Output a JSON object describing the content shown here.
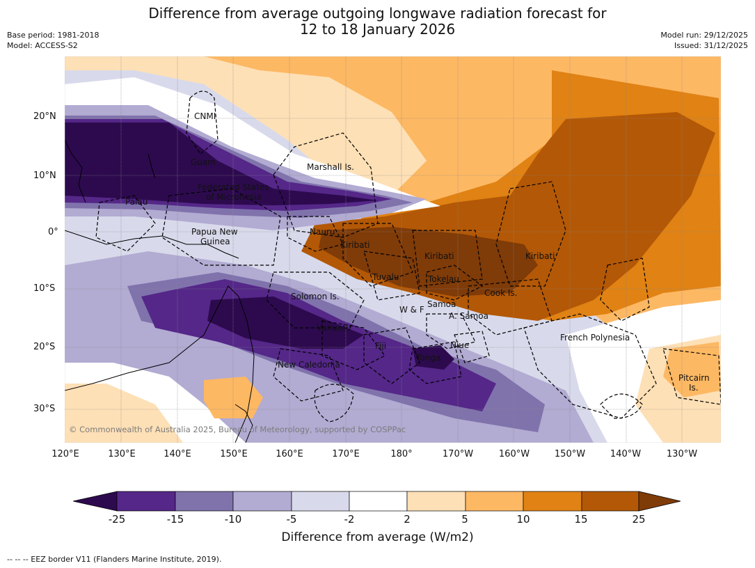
{
  "title_line1": "Difference from average outgoing longwave radiation forecast for",
  "title_line2": "12 to 18 January 2026",
  "base_period": "Base period: 1981-2018",
  "model": "Model: ACCESS-S2",
  "model_run": "Model run: 29/12/2025",
  "issued": "Issued: 31/12/2025",
  "lat_labels": [
    "20°N",
    "10°N",
    "0°",
    "10°S",
    "20°S",
    "30°S"
  ],
  "lon_labels": [
    "120°E",
    "130°E",
    "140°E",
    "150°E",
    "160°E",
    "170°E",
    "180°",
    "170°W",
    "160°W",
    "150°W",
    "140°W",
    "130°W"
  ],
  "places": [
    "CNMI",
    "Guam",
    "Marshall Is.",
    "Federated States",
    "of Micronesia",
    "Palau",
    "Papua New",
    "Guinea",
    "Nauru",
    "Kiribati",
    "Kiribati",
    "Kiribati",
    "Tuvalu",
    "Tokelau",
    "Solomon Is.",
    "Cook Is.",
    "Samoa",
    "W & F",
    "A. Samoa",
    "Vanuatu",
    "Fiji",
    "Niue",
    "French Polynesia",
    "Tonga",
    "New Caledonia",
    "Pitcairn",
    "Is."
  ],
  "copyright": "© Commonwealth of Australia 2025, Bureau of Meteorology, supported by COSPPac",
  "colorbar": {
    "ticks": [
      "-25",
      "-15",
      "-10",
      "-5",
      "-2",
      "2",
      "5",
      "10",
      "15",
      "25"
    ],
    "colors": [
      "#2d0a4e",
      "#542788",
      "#8073ac",
      "#b2abd2",
      "#d8daeb",
      "#ffffff",
      "#fee0b6",
      "#fdb863",
      "#e08214",
      "#b35806",
      "#7f3b08"
    ],
    "label": "Difference from average (W/m2)"
  },
  "footnote": "-- -- -- EEZ border V11 (Flanders Marine Institute, 2019)."
}
